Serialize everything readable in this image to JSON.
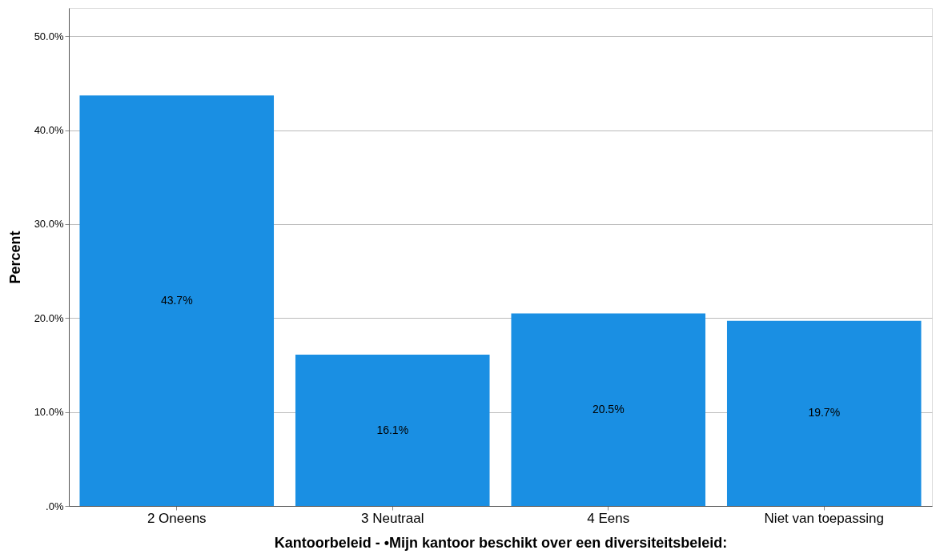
{
  "chart_data": {
    "type": "bar",
    "xlabel": "Kantoorbeleid - •Mijn kantoor beschikt over een diversiteitsbeleid:",
    "ylabel": "Percent",
    "categories": [
      "2 Oneens",
      "3 Neutraal",
      "4 Eens",
      "Niet van toepassing"
    ],
    "values": [
      43.7,
      16.1,
      20.5,
      19.7
    ],
    "value_labels": [
      "43.7%",
      "16.1%",
      "20.5%",
      "19.7%"
    ],
    "color": "#1a8fe3",
    "ylim": [
      0,
      53
    ],
    "yticks": [
      {
        "value": 0,
        "label": ".0%"
      },
      {
        "value": 10,
        "label": "10.0%"
      },
      {
        "value": 20,
        "label": "20.0%"
      },
      {
        "value": 30,
        "label": "30.0%"
      },
      {
        "value": 40,
        "label": "40.0%"
      },
      {
        "value": 50,
        "label": "50.0%"
      }
    ],
    "grid": "y"
  }
}
